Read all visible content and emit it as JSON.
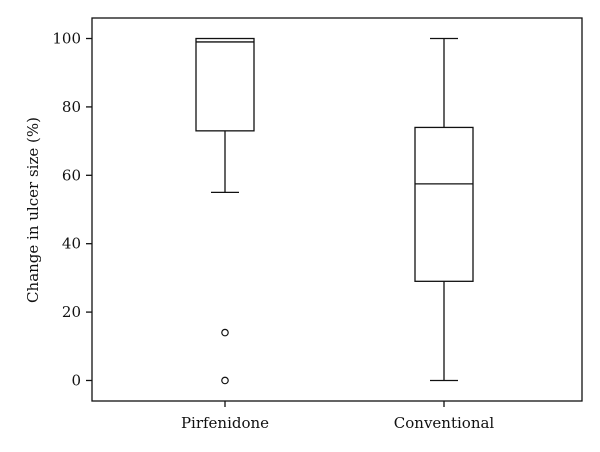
{
  "chart_data": {
    "type": "box",
    "title": "",
    "xlabel": "",
    "ylabel": "Change in ulcer size (%)",
    "categories": [
      "Pirfenidone",
      "Conventional"
    ],
    "ylim": [
      -6,
      106
    ],
    "yticks": [
      0,
      20,
      40,
      60,
      80,
      100
    ],
    "grid": false,
    "boxes": [
      {
        "name": "Pirfenidone",
        "whisker_low": 55,
        "q1": 73,
        "median": 99,
        "q3": 100,
        "whisker_high": 100,
        "outliers": [
          14,
          0
        ]
      },
      {
        "name": "Conventional",
        "whisker_low": 0,
        "q1": 29,
        "median": 57.5,
        "q3": 74,
        "whisker_high": 100,
        "outliers": []
      }
    ]
  }
}
